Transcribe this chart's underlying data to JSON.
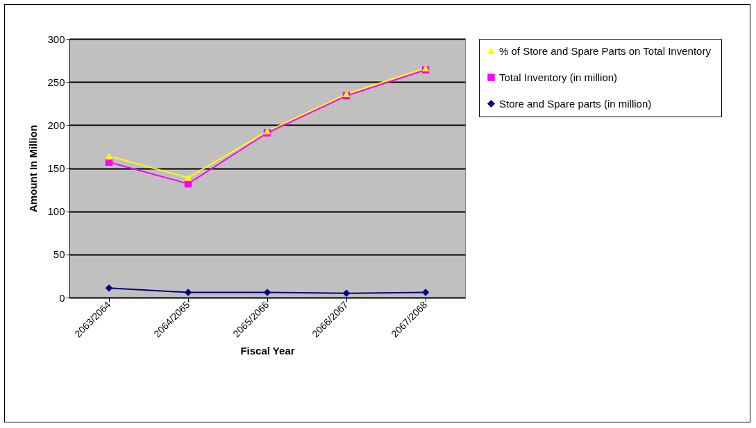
{
  "chart_data": {
    "type": "line",
    "xlabel": "Fiscal Year",
    "ylabel": "Amount In Million",
    "categories": [
      "2063/2064",
      "2064/2065",
      "2065/2066",
      "2066/2067",
      "2067/2068"
    ],
    "series": [
      {
        "name": "% of Store and Spare Parts  on Total Inventory",
        "color": "#ffff00",
        "marker": "triangle",
        "values": [
          164,
          139,
          193,
          236,
          266
        ]
      },
      {
        "name": "Total Inventory (in million)",
        "color": "#ff00ff",
        "marker": "square",
        "values": [
          157,
          132,
          191,
          234,
          264
        ]
      },
      {
        "name": "Store and Spare parts (in million)",
        "color": "#000080",
        "marker": "diamond",
        "values": [
          11,
          6,
          6,
          5,
          6
        ]
      }
    ],
    "ylim": [
      0,
      300
    ],
    "yticks": [
      0,
      50,
      100,
      150,
      200,
      250,
      300
    ],
    "grid": "y",
    "legend": "right"
  }
}
